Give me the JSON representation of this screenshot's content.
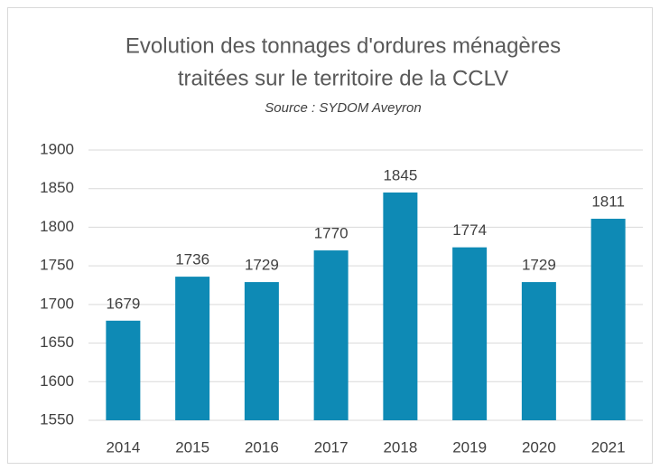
{
  "chart_data": {
    "type": "bar",
    "title": [
      "Evolution des tonnages d'ordures ménagères",
      "traitées sur le territoire de la CCLV"
    ],
    "subtitle": "Source : SYDOM Aveyron",
    "categories": [
      "2014",
      "2015",
      "2016",
      "2017",
      "2018",
      "2019",
      "2020",
      "2021"
    ],
    "values": [
      1679,
      1736,
      1729,
      1770,
      1845,
      1774,
      1729,
      1811
    ],
    "color": "#0e8ab5",
    "ylim": [
      1550,
      1900
    ],
    "yticks": [
      1550,
      1600,
      1650,
      1700,
      1750,
      1800,
      1850,
      1900
    ],
    "grid": true,
    "data_labels": true
  }
}
